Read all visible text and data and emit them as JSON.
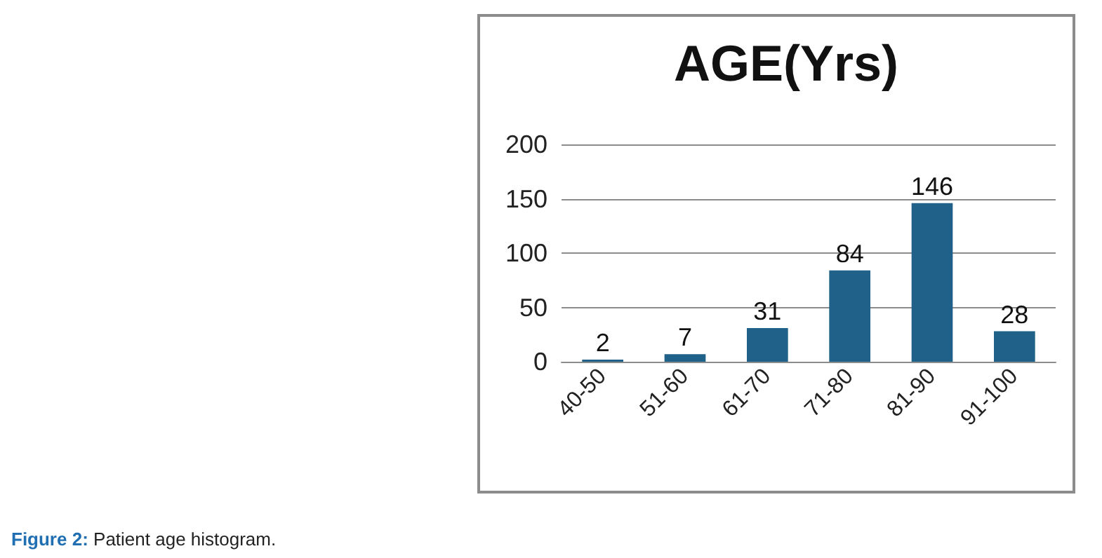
{
  "chart_data": {
    "type": "bar",
    "title": "AGE(Yrs)",
    "categories": [
      "40-50",
      "51-60",
      "61-70",
      "71-80",
      "81-90",
      "91-100"
    ],
    "values": [
      2,
      7,
      31,
      84,
      146,
      28
    ],
    "color": "#1f6188",
    "ylim": [
      0,
      200
    ],
    "yticks": [
      0,
      50,
      100,
      150,
      200
    ],
    "grid": "y",
    "data_labels": true,
    "annotations": [
      "Figure 2: Patient age histogram."
    ]
  }
}
